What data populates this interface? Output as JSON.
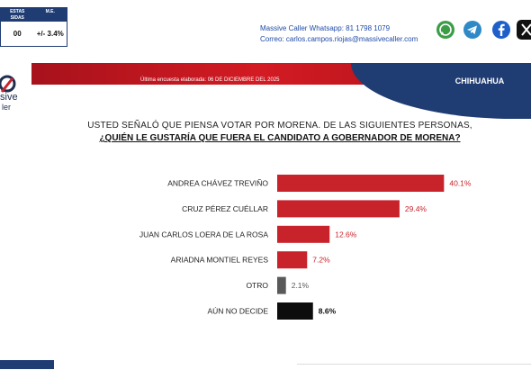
{
  "header": {
    "stat_headers": [
      "ESTAS\nSIDAS",
      "M.E."
    ],
    "stat_values": [
      "00",
      "+/- 3.4%"
    ],
    "contact_line1": "Massive Caller Whatsapp: 81 1798 1079",
    "contact_line2": "Correo: carlos.campos.riojas@massivecaller.com",
    "social_icons": [
      "whatsapp-icon",
      "telegram-icon",
      "facebook-icon",
      "x-icon"
    ]
  },
  "banner": {
    "logo_text_1": "sive",
    "logo_text_2": "ler",
    "updated": "Última encuesta elaborada: 06 DE DICIEMBRE DEL 2025",
    "region": "CHIHUAHUA"
  },
  "question": {
    "line1": "USTED SEÑALÓ QUE PIENSA VOTAR POR MORENA. DE LAS SIGUIENTES PERSONAS,",
    "line2": "¿QUIÉN LE GUSTARÍA QUE FUERA EL CANDIDATO A GOBERNADOR DE MORENA?"
  },
  "chart_data": {
    "type": "bar",
    "orientation": "horizontal",
    "categories": [
      "ANDREA CHÁVEZ TREVIÑO",
      "CRUZ PÉREZ CUÉLLAR",
      "JUAN CARLOS LOERA DE LA ROSA",
      "ARIADNA MONTIEL REYES",
      "OTRO",
      "AÚN NO DECIDE"
    ],
    "values": [
      40.1,
      29.4,
      12.6,
      7.2,
      2.1,
      8.6
    ],
    "labels": [
      "40.1%",
      "29.4%",
      "12.6%",
      "7.2%",
      "2.1%",
      "8.6%"
    ],
    "colors": [
      "#c8222a",
      "#c8222a",
      "#c8222a",
      "#c8222a",
      "#595959",
      "#0d0d0d"
    ],
    "label_colors": [
      "#c8222a",
      "#c8222a",
      "#c8222a",
      "#c8222a",
      "#595959",
      "#0d0d0d"
    ],
    "xlim": [
      0,
      45
    ],
    "grid": false,
    "legend": "none"
  }
}
